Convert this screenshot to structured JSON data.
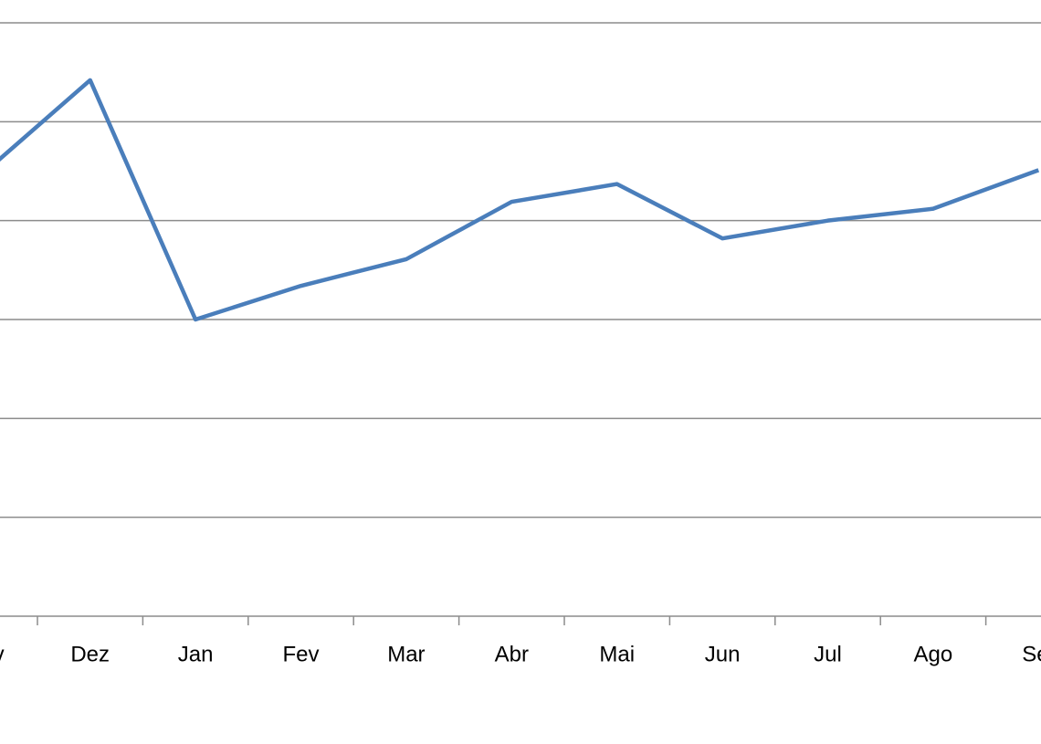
{
  "chart_data": {
    "type": "line",
    "categories": [
      "Nov",
      "Dez",
      "Jan",
      "Fev",
      "Mar",
      "Abr",
      "Mai",
      "Jun",
      "Jul",
      "Ago",
      "Set"
    ],
    "series": [
      {
        "color": "#4a7ebb",
        "values": [
          4.49,
          5.42,
          3.0,
          3.34,
          3.61,
          4.19,
          4.37,
          3.82,
          4.0,
          4.12,
          4.51
        ]
      }
    ],
    "ylim": [
      0,
      6
    ],
    "yticks": [
      0,
      1,
      2,
      3,
      4,
      5,
      6
    ],
    "grid": true
  }
}
